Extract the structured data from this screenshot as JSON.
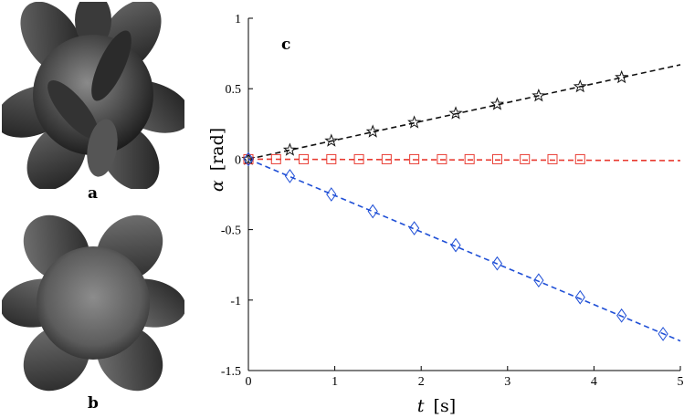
{
  "panels": {
    "a": {
      "label": "a"
    },
    "b": {
      "label": "b"
    }
  },
  "colors": {
    "star_series": "#111111",
    "square_series": "#e8392f",
    "diamond_series": "#1f4fd6",
    "sphere_dark": "#2a2a2a",
    "sphere_light": "#7a7a7a"
  },
  "chart_data": {
    "type": "line",
    "annotation": "c",
    "xlabel_var": "t",
    "xlabel_unit": "[s]",
    "ylabel_var": "α",
    "ylabel_unit": "[rad]",
    "xlim": [
      0,
      5
    ],
    "ylim": [
      -1.5,
      1
    ],
    "xticks": [
      0,
      1,
      2,
      3,
      4,
      5
    ],
    "xtick_labels": [
      "0",
      "1",
      "2",
      "3",
      "4",
      "5"
    ],
    "yticks": [
      1,
      0.5,
      0,
      -0.5,
      -1,
      -1.5
    ],
    "ytick_labels": [
      "1",
      "0.5",
      "0",
      "-0.5",
      "-1",
      "-1.5"
    ],
    "grid": false,
    "series": [
      {
        "marker": "star",
        "color": "#111111",
        "line": {
          "x": [
            0,
            5
          ],
          "y": [
            0,
            0.67
          ]
        },
        "x": [
          0,
          0.48,
          0.96,
          1.44,
          1.92,
          2.4,
          2.88,
          3.36,
          3.84,
          4.32
        ],
        "y": [
          0,
          0.065,
          0.13,
          0.195,
          0.26,
          0.325,
          0.39,
          0.45,
          0.515,
          0.58
        ]
      },
      {
        "marker": "square",
        "color": "#e8392f",
        "line": {
          "x": [
            0,
            5
          ],
          "y": [
            0,
            -0.01
          ]
        },
        "x": [
          0,
          0.32,
          0.64,
          0.96,
          1.28,
          1.6,
          1.92,
          2.24,
          2.56,
          2.88,
          3.2,
          3.52,
          3.84
        ],
        "y": [
          0,
          0,
          0,
          0,
          0,
          0,
          0,
          0,
          0,
          0,
          0,
          0,
          0
        ]
      },
      {
        "marker": "diamond",
        "color": "#1f4fd6",
        "line": {
          "x": [
            0,
            5
          ],
          "y": [
            0,
            -1.29
          ]
        },
        "x": [
          0,
          0.48,
          0.96,
          1.44,
          1.92,
          2.4,
          2.88,
          3.36,
          3.84,
          4.32,
          4.8
        ],
        "y": [
          0,
          -0.12,
          -0.25,
          -0.37,
          -0.49,
          -0.61,
          -0.74,
          -0.86,
          -0.98,
          -1.11,
          -1.24
        ]
      }
    ]
  }
}
